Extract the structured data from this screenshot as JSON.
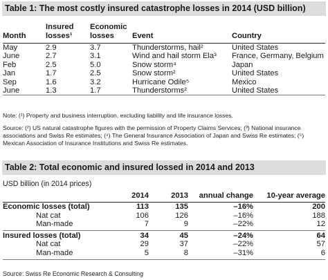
{
  "table1": {
    "title": "Table 1: The most costly insured catastrophe losses in 2014 (USD billion)",
    "headers": {
      "month": "Month",
      "insured": [
        "Insured",
        "losses¹"
      ],
      "economic": [
        "Economic",
        "losses"
      ],
      "event": "Event",
      "country": "Country"
    },
    "rows": [
      {
        "month": "May",
        "insured": "2.9",
        "economic": "3.7",
        "event": "Thunderstorms, hail²",
        "country": "United States"
      },
      {
        "month": "June",
        "insured": "2.7",
        "economic": "3.1",
        "event": "Wind and hail storm Ela³",
        "country": "France, Germany, Belgium"
      },
      {
        "month": "Feb",
        "insured": "2.5",
        "economic": "5.0",
        "event": "Snow storm⁴",
        "country": "Japan"
      },
      {
        "month": "Jan",
        "insured": "1.7",
        "economic": "2.5",
        "event": "Snow storm²",
        "country": "United States"
      },
      {
        "month": "Sep",
        "insured": "1.6",
        "economic": "3.2",
        "event": "Hurricane Odile⁵",
        "country": "Mexico"
      },
      {
        "month": "June",
        "insured": "1.3",
        "economic": "1.7",
        "event": "Thunderstorms²",
        "country": "United States"
      }
    ],
    "note": "Note: (¹) Property and business interruption, excluding liability and life insurance losses.",
    "source": "Source: (²) US natural catastrophe figures with the permission of Property Claims Services; (³) National insurance associations and Swiss Re estimates; (⁴) The General Insurance Association of Japan and Swiss Re estimates; (⁵) Mexican Association of Insurance Institutions and Swiss Re estimates."
  },
  "table2": {
    "title": "Table 2: Total economic and insured lossed in 2014 and 2013",
    "units": "USD billion (in 2014 prices)",
    "headers": {
      "col2014": "2014",
      "col2013": "2013",
      "change": "annual change",
      "avg": "10-year average"
    },
    "rows": [
      {
        "label": "Economic losses (total)",
        "v2014": "113",
        "v2013": "135",
        "change": "–16%",
        "avg": "200",
        "bold": true,
        "sub": false
      },
      {
        "label": "Nat cat",
        "v2014": "106",
        "v2013": "126",
        "change": "–16%",
        "avg": "188",
        "bold": false,
        "sub": true
      },
      {
        "label": "Man-made",
        "v2014": "7",
        "v2013": "9",
        "change": "–22%",
        "avg": "12",
        "bold": false,
        "sub": true
      },
      {
        "label": "Insured losses (total)",
        "v2014": "34",
        "v2013": "45",
        "change": "–24%",
        "avg": "64",
        "bold": true,
        "sub": false
      },
      {
        "label": "Nat cat",
        "v2014": "29",
        "v2013": "37",
        "change": "–22%",
        "avg": "57",
        "bold": false,
        "sub": true
      },
      {
        "label": "Man-made",
        "v2014": "5",
        "v2013": "8",
        "change": "–31%",
        "avg": "6",
        "bold": false,
        "sub": true
      }
    ],
    "source": "Source: Swiss Re Economic Research & Consulting"
  }
}
